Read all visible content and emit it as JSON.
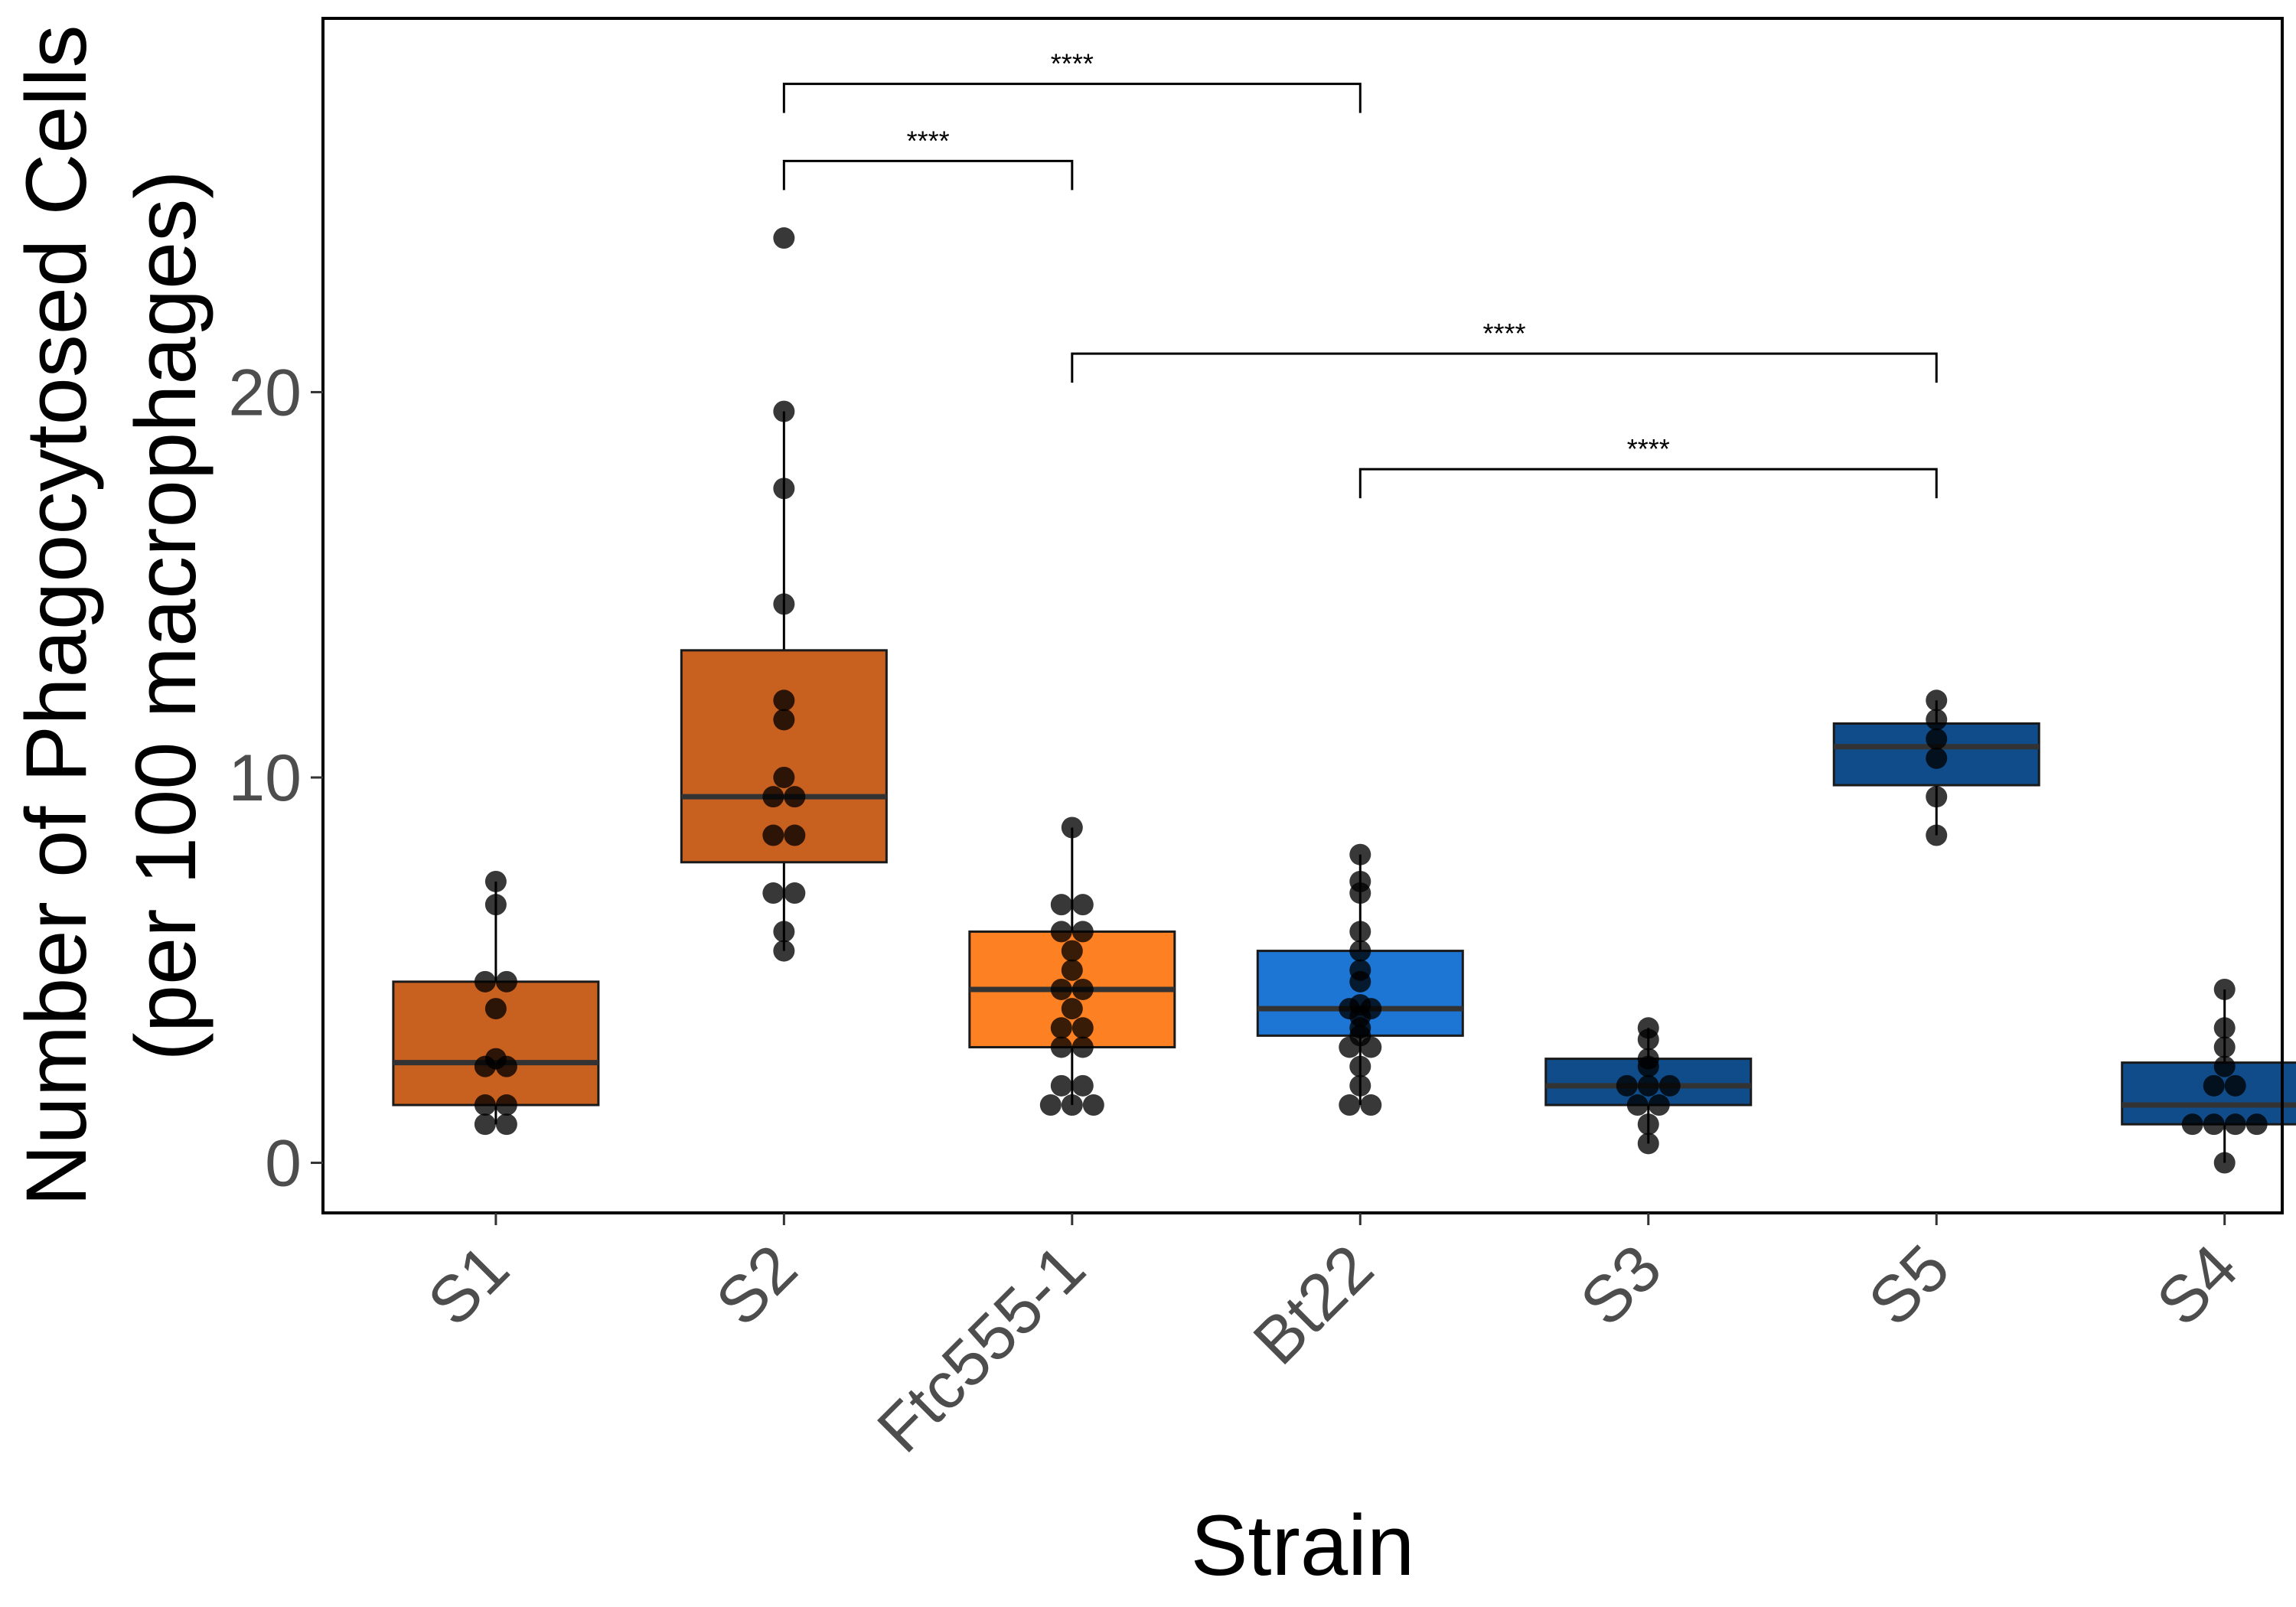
{
  "chart_data": {
    "type": "box",
    "xlabel": "Strain",
    "ylabel_lines": [
      "Number of Phagocytosed Cells",
      "(per 100 macrophages)"
    ],
    "ylim": [
      -1.3,
      29.7
    ],
    "yticks": [
      0,
      10,
      20
    ],
    "grid": false,
    "legend": "none",
    "categories": [
      "S1",
      "S2",
      "Ftc555-1",
      "Bt22",
      "S3",
      "S5",
      "S4"
    ],
    "boxes": [
      {
        "name": "S1",
        "color": "#c8611f",
        "q1": 1.5,
        "median": 2.6,
        "q3": 4.7,
        "whisker_low": 1.0,
        "whisker_high": 7.3,
        "points": [
          7.3,
          6.7,
          4.7,
          4.7,
          4.0,
          2.7,
          2.5,
          2.5,
          1.5,
          1.5,
          1.0,
          1.0
        ]
      },
      {
        "name": "S2",
        "color": "#c8611f",
        "q1": 7.8,
        "median": 9.5,
        "q3": 13.3,
        "whisker_low": 5.5,
        "whisker_high": 19.5,
        "points": [
          24.0,
          19.5,
          17.5,
          14.5,
          12.0,
          11.5,
          10.0,
          9.5,
          9.5,
          8.5,
          8.5,
          7.0,
          7.0,
          6.0,
          5.5
        ]
      },
      {
        "name": "Ftc555-1",
        "color": "#fd8023",
        "q1": 3.0,
        "median": 4.5,
        "q3": 6.0,
        "whisker_low": 1.5,
        "whisker_high": 8.7,
        "points": [
          8.7,
          6.7,
          6.7,
          6.0,
          6.0,
          5.5,
          5.0,
          4.5,
          4.5,
          4.0,
          3.5,
          3.5,
          3.0,
          3.0,
          2.0,
          2.0,
          1.5,
          1.5,
          1.5
        ]
      },
      {
        "name": "Bt22",
        "color": "#1d76d4",
        "q1": 3.3,
        "median": 4.0,
        "q3": 5.5,
        "whisker_low": 1.5,
        "whisker_high": 8.0,
        "points": [
          8.0,
          7.3,
          7.0,
          6.0,
          5.5,
          5.0,
          4.7,
          4.1,
          4.0,
          4.0,
          3.8,
          3.5,
          3.3,
          3.0,
          3.0,
          2.5,
          2.0,
          1.5,
          1.5
        ]
      },
      {
        "name": "S3",
        "color": "#104c89",
        "q1": 1.5,
        "median": 2.0,
        "q3": 2.7,
        "whisker_low": 0.5,
        "whisker_high": 3.5,
        "points": [
          3.5,
          3.2,
          2.7,
          2.5,
          2.0,
          2.0,
          2.0,
          1.5,
          1.5,
          1.0,
          0.5
        ]
      },
      {
        "name": "S5",
        "color": "#104c89",
        "q1": 9.8,
        "median": 10.8,
        "q3": 11.4,
        "whisker_low": 8.5,
        "whisker_high": 12.0,
        "points": [
          12.0,
          11.5,
          11.0,
          10.5,
          9.5,
          8.5
        ]
      },
      {
        "name": "S4",
        "color": "#104c89",
        "q1": 1.0,
        "median": 1.5,
        "q3": 2.6,
        "whisker_low": 0.0,
        "whisker_high": 4.5,
        "points": [
          4.5,
          3.5,
          3.0,
          2.5,
          2.0,
          2.0,
          1.0,
          1.0,
          1.0,
          1.0,
          0.0
        ]
      }
    ],
    "significance": [
      {
        "from": "S2",
        "to": "Bt22",
        "y": 28.0,
        "label": "****"
      },
      {
        "from": "S2",
        "to": "Ftc555-1",
        "y": 26.0,
        "label": "****"
      },
      {
        "from": "Ftc555-1",
        "to": "S5",
        "y": 21.0,
        "label": "****"
      },
      {
        "from": "Bt22",
        "to": "S5",
        "y": 18.0,
        "label": "****"
      }
    ]
  }
}
